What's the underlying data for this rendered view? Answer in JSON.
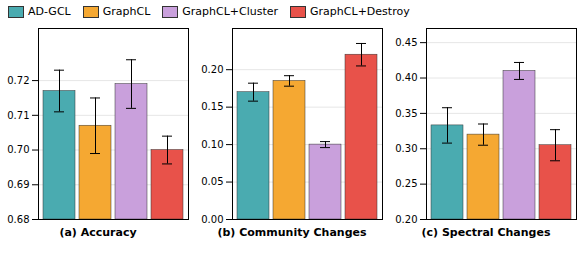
{
  "chart_data": [
    {
      "type": "bar",
      "xlabel": "(a) Accuracy",
      "categories": [
        "AD-GCL",
        "GraphCL",
        "GraphCL+Cluster",
        "GraphCL+Destroy"
      ],
      "values": [
        0.717,
        0.707,
        0.719,
        0.7
      ],
      "errors": [
        0.006,
        0.008,
        0.007,
        0.004
      ],
      "colors": [
        "#4AABB0",
        "#F5A832",
        "#C9A0DC",
        "#E8524A"
      ],
      "ylim": [
        0.68,
        0.735
      ],
      "yticks": [
        0.68,
        0.69,
        {
          "value": 0.7,
          "label": "0.70"
        },
        0.71,
        0.72
      ],
      "grid": true,
      "tick_labels": "y",
      "legend": "upper left"
    },
    {
      "type": "bar",
      "xlabel": "(b) Community Changes",
      "categories": [
        "AD-GCL",
        "GraphCL",
        "GraphCL+Cluster",
        "GraphCL+Destroy"
      ],
      "values": [
        0.17,
        0.185,
        0.1,
        0.22
      ],
      "errors": [
        0.012,
        0.007,
        0.004,
        0.015
      ],
      "colors": [
        "#4AABB0",
        "#F5A832",
        "#C9A0DC",
        "#E8524A"
      ],
      "ylim": [
        0.0,
        0.255
      ],
      "yticks": [
        {
          "value": 0,
          "label": "0.00"
        },
        0.05,
        {
          "value": 0.1,
          "label": "0.10"
        },
        0.15,
        {
          "value": 0.2,
          "label": "0.20"
        }
      ],
      "grid": true,
      "tick_labels": "y"
    },
    {
      "type": "bar",
      "xlabel": "(c) Spectral Changes",
      "categories": [
        "AD-GCL",
        "GraphCL",
        "GraphCL+Cluster",
        "GraphCL+Destroy"
      ],
      "values": [
        0.333,
        0.32,
        0.41,
        0.305
      ],
      "errors": [
        0.025,
        0.015,
        0.012,
        0.022
      ],
      "colors": [
        "#4AABB0",
        "#F5A832",
        "#C9A0DC",
        "#E8524A"
      ],
      "ylim": [
        0.2,
        0.47
      ],
      "yticks": [
        {
          "value": 0.2,
          "label": "0.20"
        },
        0.25,
        {
          "value": 0.3,
          "label": "0.30"
        },
        0.35,
        {
          "value": 0.4,
          "label": "0.40"
        },
        0.45
      ],
      "grid": true,
      "tick_labels": "y"
    }
  ]
}
